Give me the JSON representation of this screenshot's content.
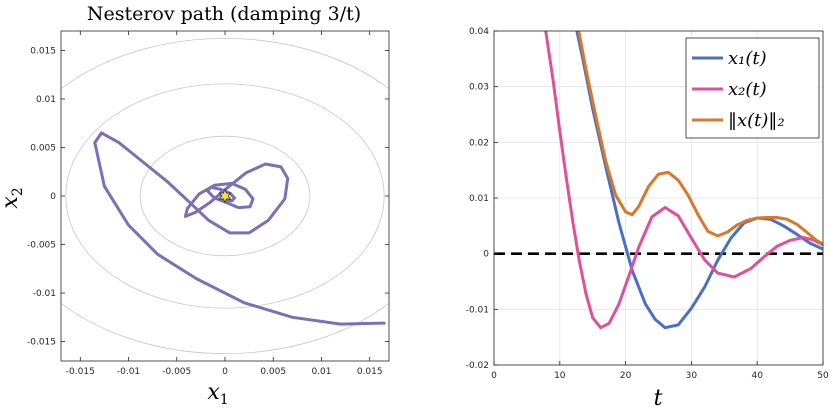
{
  "chart_data": [
    {
      "type": "line",
      "title": "Nesterov path (damping 3/t)",
      "xlabel": "x1",
      "ylabel": "x2",
      "xlim": [
        -0.017,
        0.017
      ],
      "ylim": [
        -0.017,
        0.017
      ],
      "xticks": [
        -0.015,
        -0.01,
        -0.005,
        0,
        0.005,
        0.01,
        0.015
      ],
      "yticks": [
        -0.015,
        -0.01,
        -0.005,
        0,
        0.005,
        0.01,
        0.015
      ],
      "xtick_labels": [
        "-0.015",
        "-0.01",
        "-0.005",
        "0",
        "0.005",
        "0.01",
        "0.015"
      ],
      "ytick_labels": [
        "-0.015",
        "-0.01",
        "-0.005",
        "0",
        "0.005",
        "0.01",
        "0.015"
      ],
      "contour_radii": [
        0.0088,
        0.0165,
        0.0232
      ],
      "contour_y_scale": 0.7,
      "minimizer": [
        0,
        0
      ],
      "colors": {
        "path": "#7b6fb5",
        "contour": "#c8c8c8",
        "star": "#f2e23a"
      },
      "series": [
        {
          "name": "path",
          "points": [
            [
              0.0165,
              -0.0131
            ],
            [
              0.012,
              -0.0132
            ],
            [
              0.007,
              -0.0125
            ],
            [
              0.002,
              -0.011
            ],
            [
              -0.003,
              -0.0085
            ],
            [
              -0.007,
              -0.006
            ],
            [
              -0.01,
              -0.003
            ],
            [
              -0.0125,
              0.001
            ],
            [
              -0.0135,
              0.0055
            ],
            [
              -0.0128,
              0.0065
            ],
            [
              -0.011,
              0.0055
            ],
            [
              -0.0085,
              0.0035
            ],
            [
              -0.006,
              0.0015
            ],
            [
              -0.0035,
              -0.0008
            ],
            [
              -0.0017,
              -0.0025
            ],
            [
              0.0005,
              -0.0038
            ],
            [
              0.0025,
              -0.0038
            ],
            [
              0.0045,
              -0.0025
            ],
            [
              0.0062,
              -0.0003
            ],
            [
              0.0065,
              0.0018
            ],
            [
              0.0058,
              0.003
            ],
            [
              0.0042,
              0.0033
            ],
            [
              0.0022,
              0.0024
            ],
            [
              0.0003,
              0.0009
            ],
            [
              -0.0016,
              -0.0007
            ],
            [
              -0.0031,
              -0.0017
            ],
            [
              -0.0041,
              -0.0021
            ],
            [
              -0.0039,
              -0.0013
            ],
            [
              -0.0027,
              0.0002
            ],
            [
              -0.0011,
              0.0011
            ],
            [
              0.0007,
              0.0013
            ],
            [
              0.0021,
              0.0007
            ],
            [
              0.0029,
              -0.0003
            ],
            [
              0.0026,
              -0.0011
            ],
            [
              0.0014,
              -0.0012
            ],
            [
              0.0002,
              -0.0007
            ],
            [
              -0.0011,
              -0.0002
            ],
            [
              -0.0018,
              0.0005
            ],
            [
              -0.0015,
              0.0009
            ],
            [
              -0.0005,
              0.0007
            ],
            [
              0.0005,
              0.0003
            ],
            [
              0.001,
              -0.0002
            ],
            [
              0.0007,
              -0.0005
            ],
            [
              0.0001,
              -0.0004
            ],
            [
              -0.0005,
              0.0001
            ],
            [
              -0.0004,
              0.0004
            ],
            [
              0.0001,
              0.0002
            ],
            [
              0.0002,
              0.0
            ]
          ]
        }
      ]
    },
    {
      "type": "line",
      "title": "",
      "xlabel": "t",
      "ylabel": "",
      "xlim": [
        0,
        50
      ],
      "ylim": [
        -0.02,
        0.04
      ],
      "xticks": [
        0,
        10,
        20,
        30,
        40,
        50
      ],
      "yticks": [
        -0.02,
        -0.01,
        0,
        0.01,
        0.02,
        0.03,
        0.04
      ],
      "xtick_labels": [
        "0",
        "10",
        "20",
        "30",
        "40",
        "50"
      ],
      "ytick_labels": [
        "-0.02",
        "-0.01",
        "0",
        "0.01",
        "0.02",
        "0.03",
        "0.04"
      ],
      "grid": true,
      "legend_position": "top-right",
      "legend": [
        "x₁(t)",
        "x₂(t)",
        "‖x(t)‖₂"
      ],
      "reference_line": {
        "y": 0,
        "style": "dashed",
        "color": "#000000"
      },
      "series": [
        {
          "name": "x₁(t)",
          "color": "#4a6fc9",
          "x": [
            12.5,
            13.5,
            15,
            17,
            19,
            21,
            23,
            24.5,
            26,
            28,
            30,
            32,
            34,
            36,
            38,
            40,
            42,
            44,
            46,
            48,
            50
          ],
          "y": [
            0.0405,
            0.035,
            0.026,
            0.0155,
            0.0055,
            -0.003,
            -0.009,
            -0.0118,
            -0.0133,
            -0.0128,
            -0.0098,
            -0.006,
            -0.0012,
            0.0028,
            0.0055,
            0.0064,
            0.0062,
            0.005,
            0.0035,
            0.0019,
            0.0008
          ]
        },
        {
          "name": "x₂(t)",
          "color": "#e0509a",
          "x": [
            7.8,
            9,
            10,
            11,
            12,
            13,
            14,
            15,
            16.2,
            17.5,
            19,
            20.5,
            22,
            24,
            26,
            28,
            30,
            32,
            34,
            36.5,
            39,
            41,
            43,
            45,
            47,
            48.5,
            50
          ],
          "y": [
            0.0405,
            0.031,
            0.022,
            0.0135,
            0.0055,
            -0.0015,
            -0.0073,
            -0.0115,
            -0.0133,
            -0.0125,
            -0.009,
            -0.004,
            0.0012,
            0.0066,
            0.0083,
            0.0068,
            0.0028,
            -0.0011,
            -0.0035,
            -0.0042,
            -0.0027,
            -0.0006,
            0.0013,
            0.0024,
            0.0029,
            0.0025,
            0.0016
          ]
        },
        {
          "name": "‖x(t)‖₂",
          "color": "#d9772b",
          "x": [
            12.8,
            14,
            15.5,
            17,
            18.5,
            20,
            21,
            22,
            23.5,
            25,
            26.5,
            28,
            29.5,
            31,
            32.5,
            34,
            35.5,
            37,
            38.5,
            40,
            41.5,
            43,
            44.5,
            46,
            47.5,
            49,
            50
          ],
          "y": [
            0.0405,
            0.033,
            0.0245,
            0.0165,
            0.0105,
            0.0075,
            0.007,
            0.0085,
            0.0121,
            0.0143,
            0.0146,
            0.0132,
            0.0105,
            0.007,
            0.004,
            0.0032,
            0.0039,
            0.0052,
            0.006,
            0.0064,
            0.0065,
            0.0065,
            0.0062,
            0.0053,
            0.0039,
            0.0024,
            0.0017
          ]
        }
      ]
    }
  ]
}
